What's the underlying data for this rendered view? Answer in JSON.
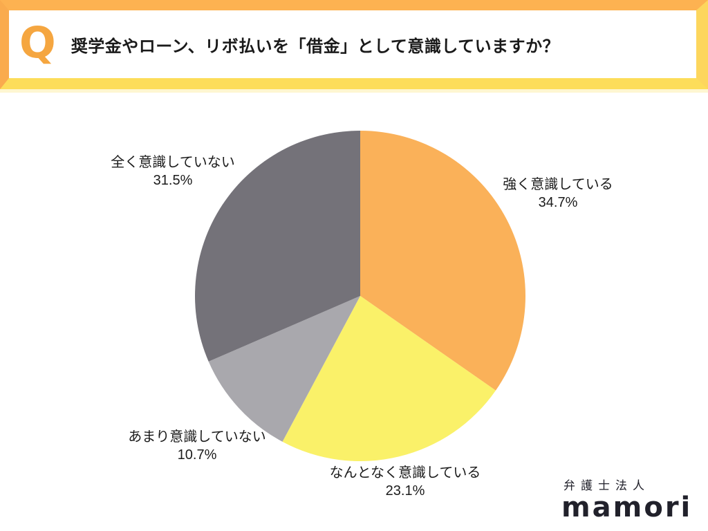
{
  "header": {
    "q_badge": "Q",
    "question": "奨学金やローン、リボ払いを「借金」として意識していますか？"
  },
  "chart_data": {
    "type": "pie",
    "title": "奨学金やローン、リボ払いを「借金」として意識していますか？",
    "unit": "%",
    "start_angle": "12 o'clock",
    "direction": "clockwise",
    "labels_position": "outside",
    "legend": "none",
    "slices": [
      {
        "label": "強く意識している",
        "value": 34.7,
        "pct_label": "34.7%",
        "color": "#FAB159"
      },
      {
        "label": "なんとなく意識している",
        "value": 23.1,
        "pct_label": "23.1%",
        "color": "#FAF169"
      },
      {
        "label": "あまり意識していない",
        "value": 10.7,
        "pct_label": "10.7%",
        "color": "#A9A8AD"
      },
      {
        "label": "全く意識していない",
        "value": 31.5,
        "pct_label": "31.5%",
        "color": "#747279"
      }
    ]
  },
  "logo": {
    "company_type": "弁護士法人",
    "brand": "mamori"
  },
  "colors": {
    "banner_border_top": "#FDB251",
    "banner_border_left": "#FAAB4D",
    "banner_border_right": "#FDD65D",
    "banner_border_bottom": "#FDDD5A",
    "q_badge": "#F5A640",
    "text": "#1B1B1B",
    "logo_text": "#21212B",
    "background": "#FFFFFF"
  }
}
